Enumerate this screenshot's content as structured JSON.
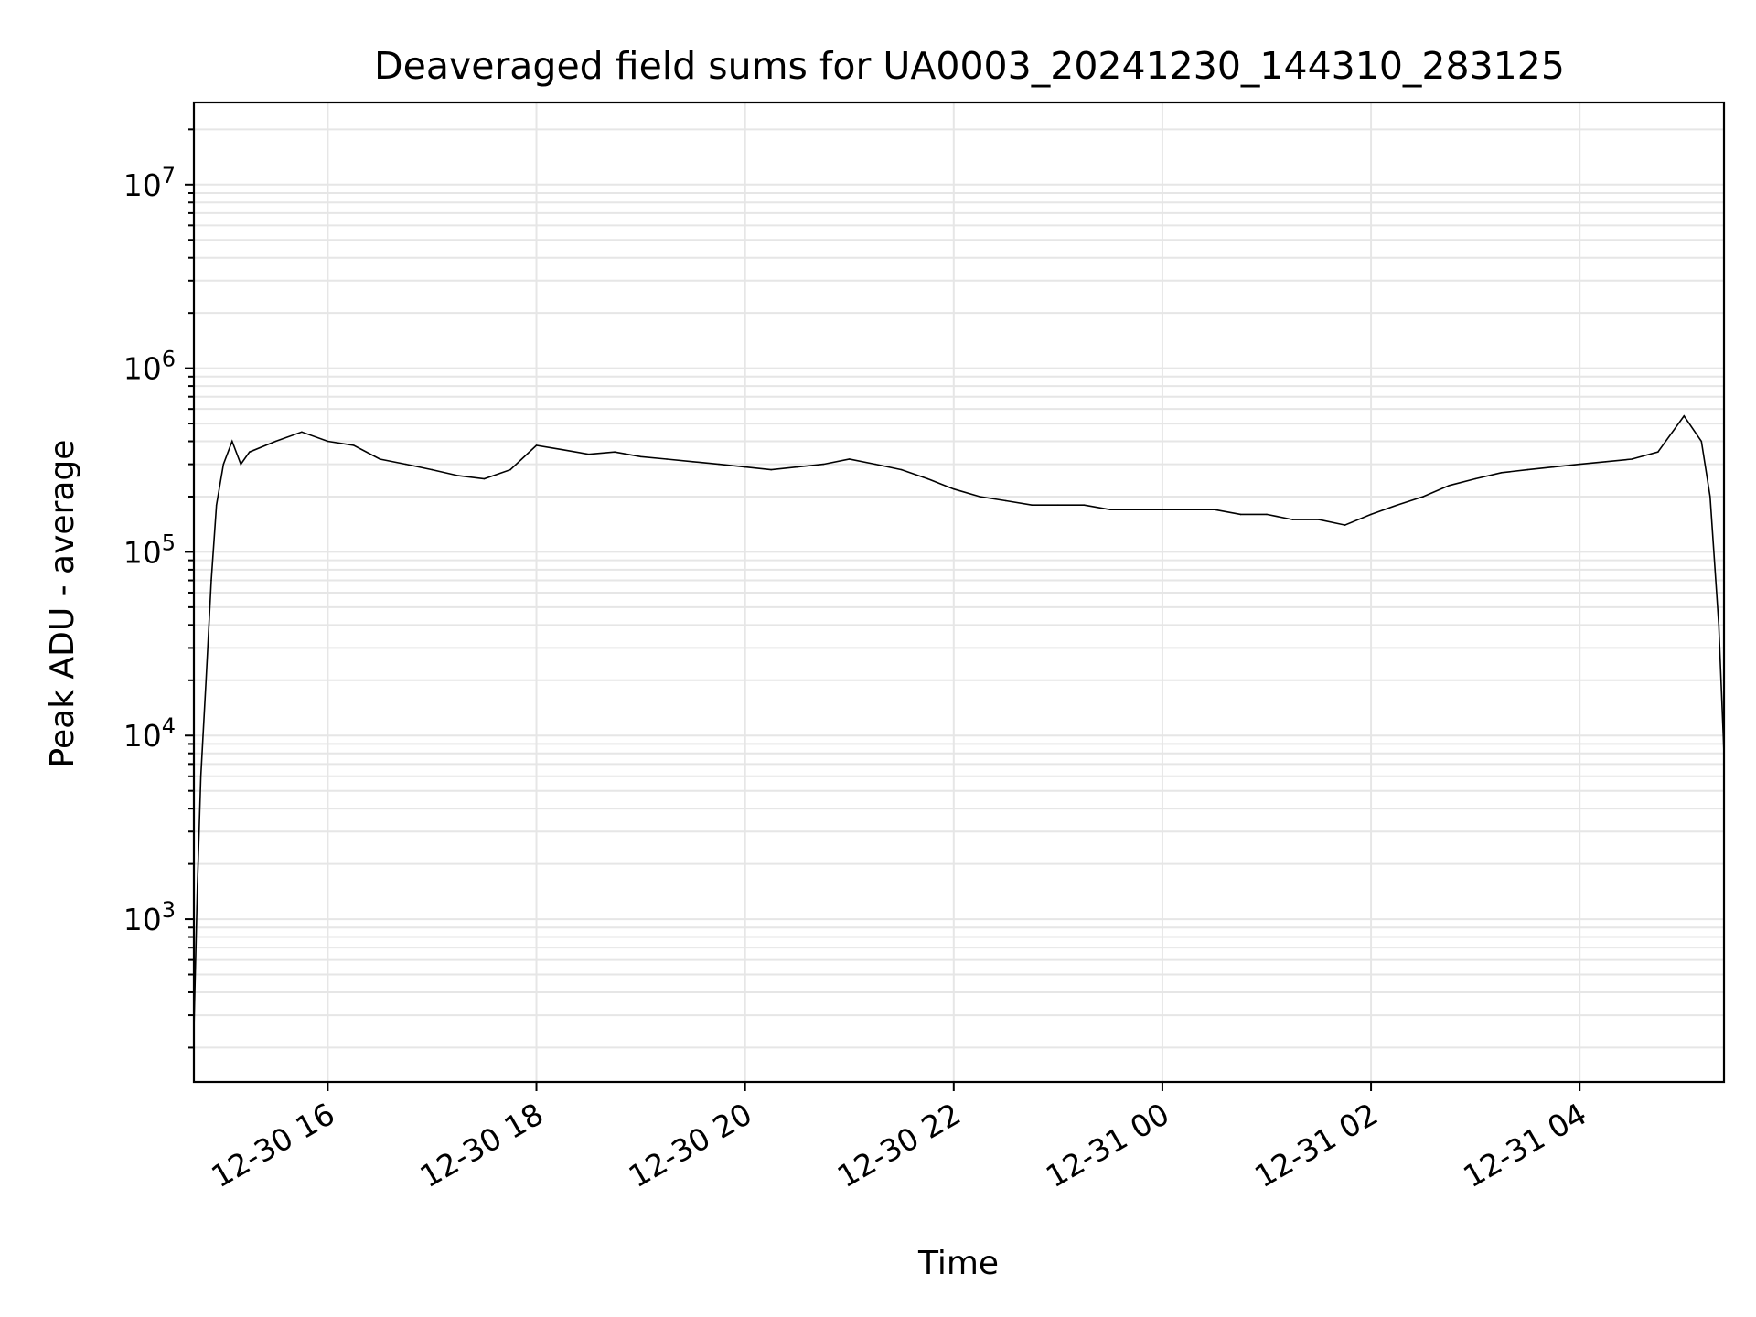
{
  "chart_data": {
    "type": "line",
    "title": "Deaveraged field sums for UA0003_20241230_144310_283125",
    "xlabel": "Time",
    "ylabel": "Peak ADU - average",
    "y_scale": "log",
    "ylim": [
      130,
      28000000
    ],
    "xlim": [
      "2024-12-30T14:43",
      "2024-12-31T05:23"
    ],
    "x_ticks": [
      {
        "value": "2024-12-30T16:00",
        "label": "12-30 16"
      },
      {
        "value": "2024-12-30T18:00",
        "label": "12-30 18"
      },
      {
        "value": "2024-12-30T20:00",
        "label": "12-30 20"
      },
      {
        "value": "2024-12-30T22:00",
        "label": "12-30 22"
      },
      {
        "value": "2024-12-31T00:00",
        "label": "12-31 00"
      },
      {
        "value": "2024-12-31T02:00",
        "label": "12-31 02"
      },
      {
        "value": "2024-12-31T04:00",
        "label": "12-31 04"
      }
    ],
    "y_ticks": [
      {
        "value": 1000,
        "base": "10",
        "exp": "3"
      },
      {
        "value": 10000,
        "base": "10",
        "exp": "4"
      },
      {
        "value": 100000,
        "base": "10",
        "exp": "5"
      },
      {
        "value": 1000000,
        "base": "10",
        "exp": "6"
      },
      {
        "value": 10000000,
        "base": "10",
        "exp": "7"
      }
    ],
    "grid": true,
    "line_color": "#000000",
    "grid_color": "#e6e6e6",
    "series": [
      {
        "x": [
          "2024-12-30T14:43",
          "2024-12-30T14:45",
          "2024-12-30T14:47",
          "2024-12-30T14:50",
          "2024-12-30T14:53",
          "2024-12-30T14:56",
          "2024-12-30T15:00",
          "2024-12-30T15:05",
          "2024-12-30T15:10",
          "2024-12-30T15:15",
          "2024-12-30T15:30",
          "2024-12-30T15:45",
          "2024-12-30T16:00",
          "2024-12-30T16:15",
          "2024-12-30T16:30",
          "2024-12-30T16:45",
          "2024-12-30T17:00",
          "2024-12-30T17:15",
          "2024-12-30T17:30",
          "2024-12-30T17:45",
          "2024-12-30T18:00",
          "2024-12-30T18:15",
          "2024-12-30T18:30",
          "2024-12-30T18:45",
          "2024-12-30T19:00",
          "2024-12-30T19:15",
          "2024-12-30T19:30",
          "2024-12-30T19:45",
          "2024-12-30T20:00",
          "2024-12-30T20:15",
          "2024-12-30T20:30",
          "2024-12-30T20:45",
          "2024-12-30T21:00",
          "2024-12-30T21:15",
          "2024-12-30T21:30",
          "2024-12-30T21:45",
          "2024-12-30T22:00",
          "2024-12-30T22:15",
          "2024-12-30T22:30",
          "2024-12-30T22:45",
          "2024-12-30T23:00",
          "2024-12-30T23:15",
          "2024-12-30T23:30",
          "2024-12-30T23:45",
          "2024-12-31T00:00",
          "2024-12-31T00:15",
          "2024-12-31T00:30",
          "2024-12-31T00:45",
          "2024-12-31T01:00",
          "2024-12-31T01:15",
          "2024-12-31T01:30",
          "2024-12-31T01:45",
          "2024-12-31T02:00",
          "2024-12-31T02:15",
          "2024-12-31T02:30",
          "2024-12-31T02:45",
          "2024-12-31T03:00",
          "2024-12-31T03:15",
          "2024-12-31T03:30",
          "2024-12-31T03:45",
          "2024-12-31T04:00",
          "2024-12-31T04:15",
          "2024-12-31T04:30",
          "2024-12-31T04:45",
          "2024-12-31T05:00",
          "2024-12-31T05:10",
          "2024-12-31T05:15",
          "2024-12-31T05:20",
          "2024-12-31T05:23"
        ],
        "y": [
          250,
          1500,
          6000,
          20000,
          70000,
          180000,
          300000,
          400000,
          300000,
          350000,
          400000,
          450000,
          400000,
          380000,
          320000,
          300000,
          280000,
          260000,
          250000,
          280000,
          380000,
          360000,
          340000,
          350000,
          330000,
          320000,
          310000,
          300000,
          290000,
          280000,
          290000,
          300000,
          320000,
          300000,
          280000,
          250000,
          220000,
          200000,
          190000,
          180000,
          180000,
          180000,
          170000,
          170000,
          170000,
          170000,
          170000,
          160000,
          160000,
          150000,
          150000,
          140000,
          160000,
          180000,
          200000,
          230000,
          250000,
          270000,
          280000,
          290000,
          300000,
          310000,
          320000,
          350000,
          550000,
          400000,
          200000,
          40000,
          8000
        ]
      }
    ]
  }
}
